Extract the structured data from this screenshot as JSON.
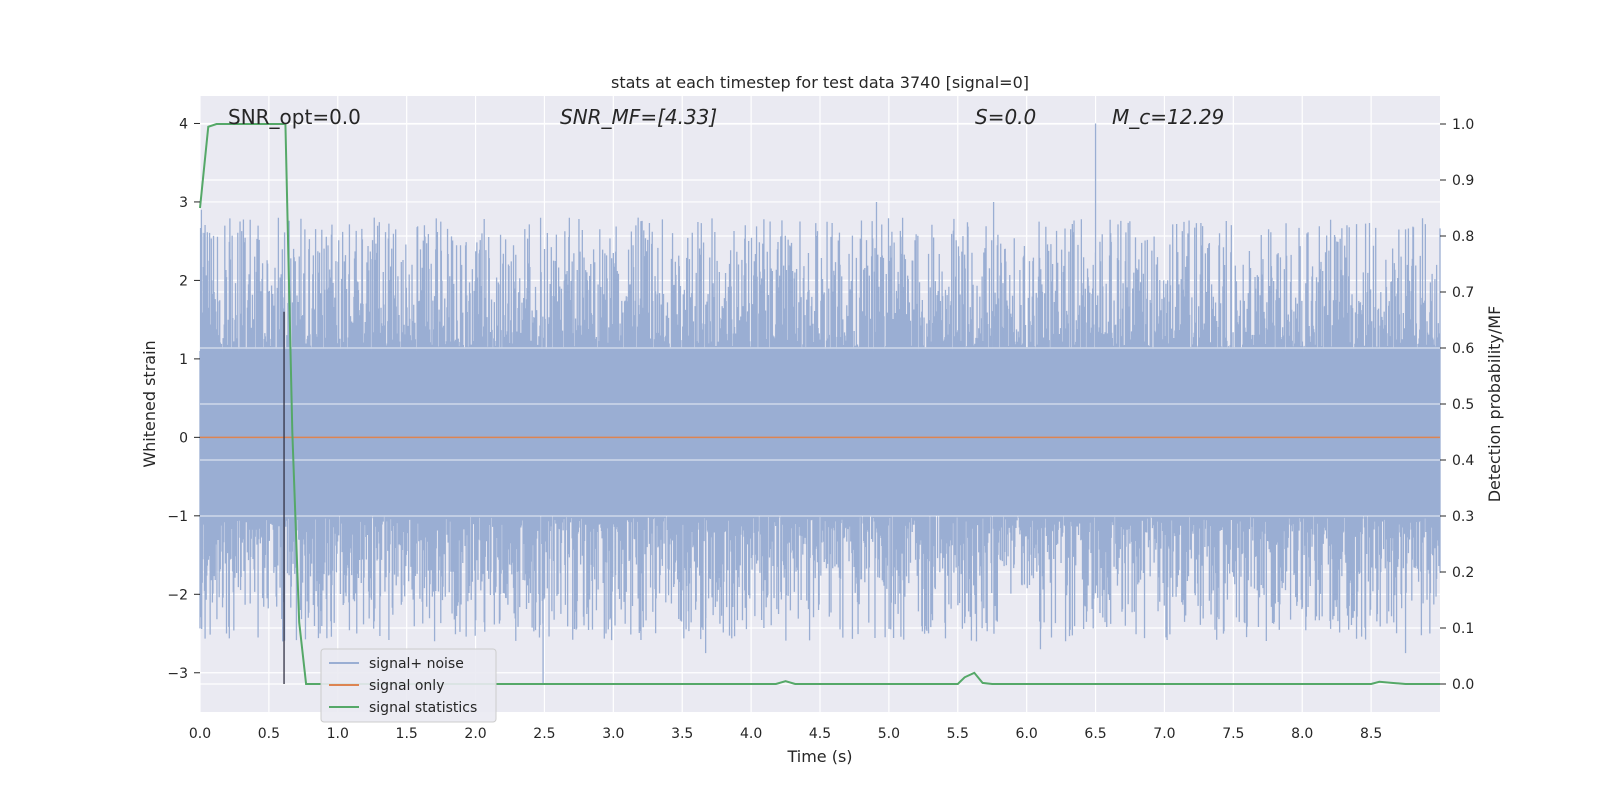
{
  "chart_data": {
    "type": "line",
    "title": "stats at each timestep for test data 3740 [signal=0]",
    "xlabel": "Time (s)",
    "ylabel": "Whitened strain",
    "y2label": "Detection probability/MF",
    "xlim": [
      0.0,
      9.0
    ],
    "ylim": [
      -3.5,
      4.35
    ],
    "y2lim": [
      -0.05,
      1.05
    ],
    "xticks": [
      "0.0",
      "0.5",
      "1.0",
      "1.5",
      "2.0",
      "2.5",
      "3.0",
      "3.5",
      "4.0",
      "4.5",
      "5.0",
      "5.5",
      "6.0",
      "6.5",
      "7.0",
      "7.5",
      "8.0",
      "8.5"
    ],
    "yticks": [
      "4",
      "3",
      "2",
      "1",
      "0",
      "−1",
      "−2",
      "−3"
    ],
    "y2ticks": [
      "1.0",
      "0.9",
      "0.8",
      "0.7",
      "0.6",
      "0.5",
      "0.4",
      "0.3",
      "0.2",
      "0.1",
      "0.0"
    ],
    "grid": true,
    "legend_position": "lower-left",
    "background": "#eaeaf2",
    "annotations": [
      {
        "text": "SNR_opt=0.0"
      },
      {
        "text": "SNR_MF=[4.33]"
      },
      {
        "text": "S=0.0"
      },
      {
        "text": "M_c=12.29"
      }
    ],
    "marker_line_x": 0.61,
    "series": [
      {
        "name": "signal+ noise",
        "color": "#9aaed3",
        "axis": "left",
        "note": "noisy whitened strain, amplitude mostly within ±2.5 with peaks near 3.0 and -3.2",
        "peaks": [
          {
            "x": 0.01,
            "y": 2.9
          },
          {
            "x": 0.6,
            "y": -2.6
          },
          {
            "x": 2.49,
            "y": -3.15
          },
          {
            "x": 3.67,
            "y": -2.75
          },
          {
            "x": 4.91,
            "y": 3.0
          },
          {
            "x": 5.76,
            "y": 3.0
          },
          {
            "x": 6.1,
            "y": -2.7
          },
          {
            "x": 6.5,
            "y": 4.0
          },
          {
            "x": 8.75,
            "y": -2.75
          },
          {
            "x": 8.75,
            "y": 2.65
          }
        ]
      },
      {
        "name": "signal only",
        "color": "#dd8452",
        "axis": "left",
        "x": [
          0.0,
          9.0
        ],
        "y": [
          0.0,
          0.0
        ]
      },
      {
        "name": "signal statistics",
        "color": "#55a868",
        "axis": "right",
        "x": [
          0.0,
          0.06,
          0.12,
          0.25,
          0.4,
          0.55,
          0.62,
          0.67,
          0.72,
          0.77,
          1.0,
          2.0,
          3.0,
          4.0,
          4.18,
          4.25,
          4.32,
          5.0,
          5.5,
          5.55,
          5.62,
          5.68,
          5.75,
          6.0,
          7.0,
          8.0,
          8.5,
          8.56,
          8.65,
          8.75,
          9.0
        ],
        "y": [
          0.85,
          0.995,
          1.0,
          1.0,
          1.0,
          1.0,
          1.0,
          0.45,
          0.11,
          0.0,
          0.0,
          0.0,
          0.0,
          0.0,
          0.0,
          0.005,
          0.0,
          0.0,
          0.0,
          0.012,
          0.02,
          0.002,
          0.0,
          0.0,
          0.0,
          0.0,
          0.0,
          0.004,
          0.002,
          0.0,
          0.0
        ]
      }
    ]
  }
}
